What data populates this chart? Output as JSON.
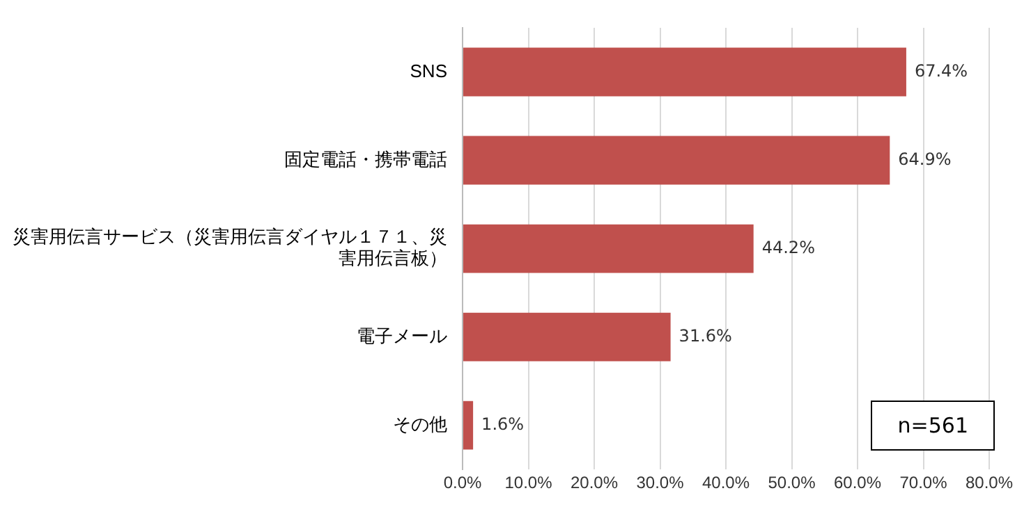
{
  "chart_data": {
    "type": "bar",
    "orientation": "horizontal",
    "categories": [
      "SNS",
      "固定電話・携帯電話",
      "災害用伝言サービス（災害用伝言ダイヤル１７１、災害用伝言板）",
      "電子メール",
      "その他"
    ],
    "values": [
      67.4,
      64.9,
      44.2,
      31.6,
      1.6
    ],
    "value_labels": [
      "67.4%",
      "64.9%",
      "44.2%",
      "31.6%",
      "1.6%"
    ],
    "color": "#c0504d",
    "xlim": [
      0,
      80
    ],
    "xticks": [
      {
        "value": 0,
        "label": "0.0%"
      },
      {
        "value": 10,
        "label": "10.0%"
      },
      {
        "value": 20,
        "label": "20.0%"
      },
      {
        "value": 30,
        "label": "30.0%"
      },
      {
        "value": 40,
        "label": "40.0%"
      },
      {
        "value": 50,
        "label": "50.0%"
      },
      {
        "value": 60,
        "label": "60.0%"
      },
      {
        "value": 70,
        "label": "70.0%"
      },
      {
        "value": 80,
        "label": "80.0%"
      }
    ],
    "grid": "x",
    "legend": false,
    "annotations": [
      "n=561"
    ]
  }
}
